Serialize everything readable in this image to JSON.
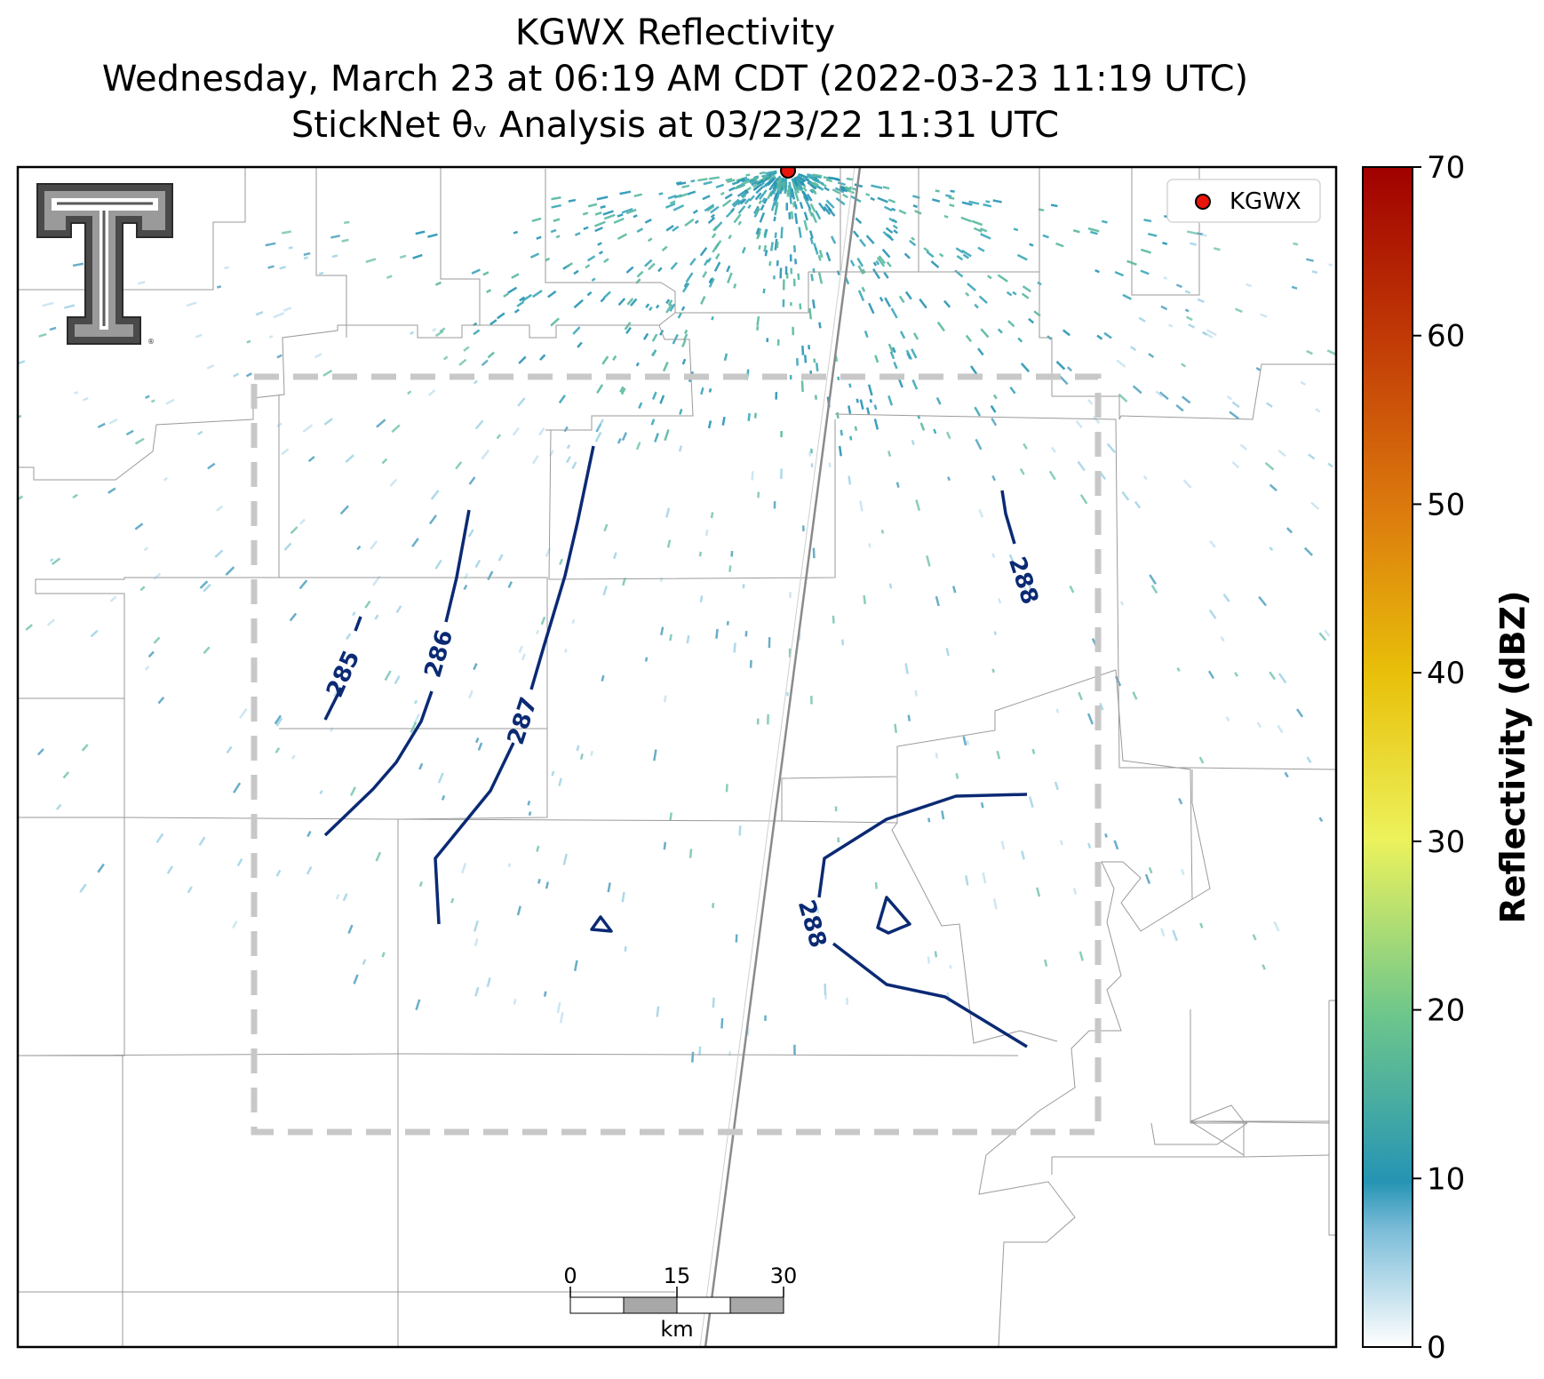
{
  "title": {
    "line1": "KGWX Reflectivity",
    "line2": "Wednesday, March 23 at 06:19 AM CDT (2022-03-23 11:19 UTC)",
    "line3": "StickNet θᵥ Analysis at 03/23/22 11:31 UTC"
  },
  "legend": {
    "label": "KGWX",
    "marker_color": "#e8140c"
  },
  "colorbar": {
    "label": "Reflectivity (dBZ)",
    "ticks": [
      "0",
      "10",
      "20",
      "30",
      "40",
      "50",
      "60",
      "70"
    ],
    "range": [
      0,
      70
    ],
    "colors": [
      "#ffffff",
      "#c6e2f2",
      "#2694b4",
      "#6cc68c",
      "#ecf25c",
      "#e8c00a",
      "#dc7a0e",
      "#c23c06",
      "#a00000"
    ]
  },
  "scale_bar": {
    "ticks": [
      "0",
      "15",
      "30"
    ],
    "unit": "km"
  },
  "contour_labels": [
    "285",
    "286",
    "287",
    "288",
    "288"
  ],
  "analysis_box": {
    "style": "dashed",
    "color": "#c8c8c8"
  },
  "logo": {
    "name": "Texas Tech double-T logo"
  }
}
